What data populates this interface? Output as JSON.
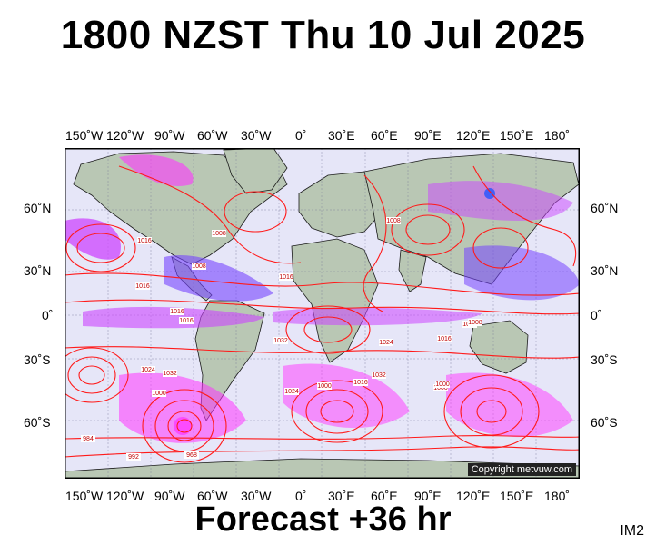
{
  "header": {
    "title": "1800 NZST Thu 10 Jul 2025"
  },
  "footer": {
    "forecast": "Forecast +36 hr",
    "image_code": "IM2"
  },
  "map": {
    "copyright": "Copyright metvuw.com",
    "lon_ticks": [
      "150˚W",
      "120˚W",
      "90˚W",
      "60˚W",
      "30˚W",
      "0˚",
      "30˚E",
      "60˚E",
      "90˚E",
      "120˚E",
      "150˚E",
      "180˚"
    ],
    "lat_ticks": [
      "60˚N",
      "30˚N",
      "0˚",
      "30˚S",
      "60˚S"
    ],
    "isobar_labels": [
      "1016",
      "1008",
      "1016",
      "1008",
      "1016",
      "1024",
      "1032",
      "1000",
      "1016",
      "1032",
      "1000",
      "1016",
      "1024",
      "1008",
      "1016",
      "1000",
      "1024",
      "1016",
      "1008",
      "984",
      "968",
      "992",
      "1000",
      "1032",
      "1016"
    ],
    "colors": {
      "ocean": "#e6e6f8",
      "land": "#b9c7b4",
      "isobar": "#ff1a1a",
      "precip_light": "#cc44ff",
      "precip_mid": "#7744ff",
      "precip_heavy": "#ff33ff"
    }
  }
}
